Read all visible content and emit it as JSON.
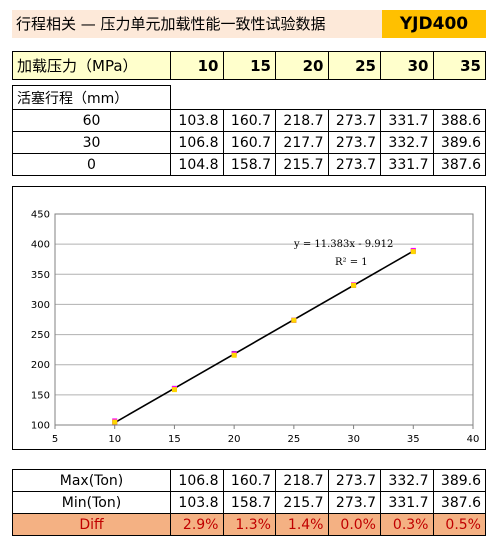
{
  "header": {
    "title": "行程相关 — 压力单元加载性能一致性试验数据",
    "model": "YJD400"
  },
  "table": {
    "pressure_label": "加载压力（MPa）",
    "pressures": [
      "10",
      "15",
      "20",
      "25",
      "30",
      "35"
    ],
    "stroke_label": "活塞行程（mm）",
    "rows": [
      {
        "label": "60",
        "values": [
          "103.8",
          "160.7",
          "218.7",
          "273.7",
          "331.7",
          "388.6"
        ]
      },
      {
        "label": "30",
        "values": [
          "106.8",
          "160.7",
          "217.7",
          "273.7",
          "332.7",
          "389.6"
        ]
      },
      {
        "label": "0",
        "values": [
          "104.8",
          "158.7",
          "215.7",
          "273.7",
          "331.7",
          "387.6"
        ]
      }
    ]
  },
  "summary": {
    "rows": [
      {
        "label": "Max(Ton)",
        "values": [
          "106.8",
          "160.7",
          "218.7",
          "273.7",
          "332.7",
          "389.6"
        ]
      },
      {
        "label": "Min(Ton)",
        "values": [
          "103.8",
          "158.7",
          "215.7",
          "273.7",
          "331.7",
          "387.6"
        ]
      }
    ],
    "diff": {
      "label": "Diff",
      "values": [
        "2.9%",
        "1.3%",
        "1.4%",
        "0.0%",
        "0.3%",
        "0.5%"
      ]
    }
  },
  "chart_data": {
    "type": "scatter",
    "x": [
      10,
      15,
      20,
      25,
      30,
      35
    ],
    "series": [
      {
        "values": [
          103.8,
          160.7,
          218.7,
          273.7,
          331.7,
          388.6
        ],
        "color": "#7030a0"
      },
      {
        "values": [
          106.8,
          160.7,
          217.7,
          273.7,
          332.7,
          389.6
        ],
        "color": "#ff00ff"
      },
      {
        "values": [
          104.8,
          158.7,
          215.7,
          273.7,
          331.7,
          387.6
        ],
        "color": "#ffd700"
      }
    ],
    "trendline": {
      "slope": 11.383,
      "intercept": -9.912,
      "color": "#000000"
    },
    "equation": "y = 11.383x - 9.912",
    "r_squared_label": "R² = 1",
    "xlim": [
      5,
      40
    ],
    "ylim": [
      100,
      450
    ],
    "xticks": [
      5,
      10,
      15,
      20,
      25,
      30,
      35,
      40
    ],
    "yticks": [
      100,
      150,
      200,
      250,
      300,
      350,
      400,
      450
    ],
    "grid": "horizontal",
    "legend": "none"
  }
}
